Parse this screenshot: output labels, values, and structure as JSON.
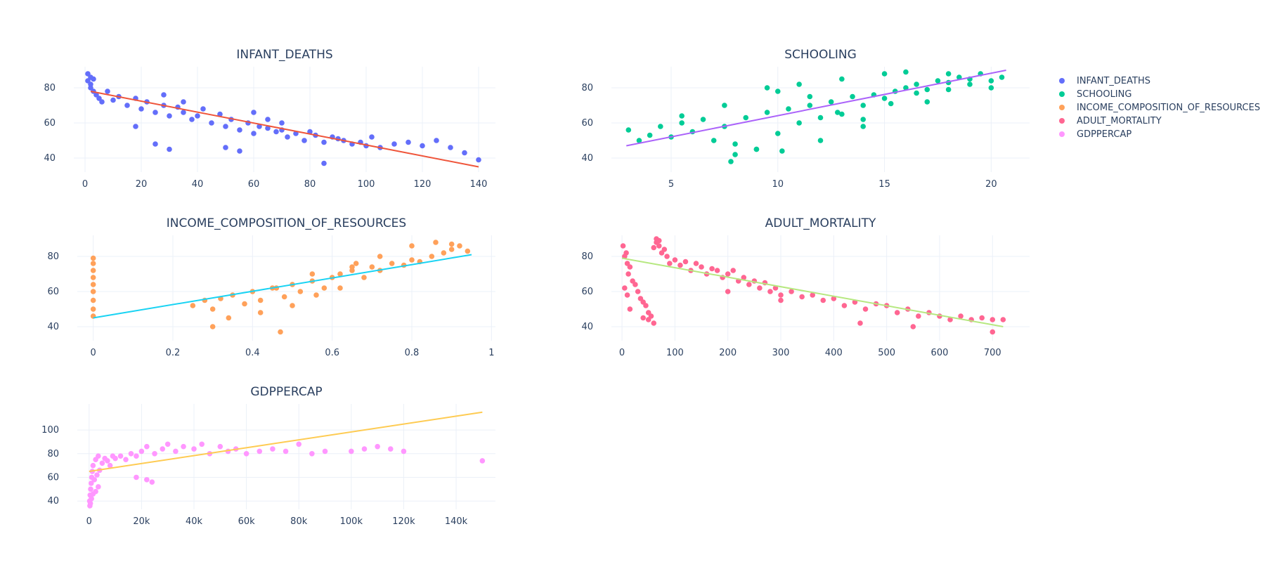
{
  "legend": {
    "placement": "top-right",
    "items": [
      {
        "label": "INFANT_DEATHS",
        "color": "#636efa"
      },
      {
        "label": "SCHOOLING",
        "color": "#00cc96"
      },
      {
        "label": "INCOME_COMPOSITION_OF_RESOURCES",
        "color": "#ffa15a"
      },
      {
        "label": "ADULT_MORTALITY",
        "color": "#ff6692"
      },
      {
        "label": "GDPPERCAP",
        "color": "#ff97ff"
      }
    ]
  },
  "chart_data": [
    {
      "type": "scatter",
      "title": "INFANT_DEATHS",
      "xlim": [
        -4,
        146
      ],
      "ylim": [
        32,
        92
      ],
      "xticks": [
        0,
        20,
        40,
        60,
        80,
        100,
        120,
        140
      ],
      "xtick_labels": [
        "0",
        "20",
        "40",
        "60",
        "80",
        "100",
        "120",
        "140"
      ],
      "yticks": [
        40,
        60,
        80
      ],
      "ytick_labels": [
        "40",
        "60",
        "80"
      ],
      "color": "#636efa",
      "trend_color": "#ef553b",
      "trend": {
        "x": [
          2,
          140
        ],
        "y": [
          78,
          35
        ]
      },
      "series": [
        {
          "name": "INFANT_DEATHS",
          "x": [
            1,
            1,
            2,
            2,
            2,
            3,
            3,
            4,
            5,
            6,
            8,
            10,
            12,
            15,
            18,
            20,
            22,
            25,
            28,
            30,
            33,
            35,
            38,
            40,
            42,
            45,
            48,
            50,
            52,
            55,
            58,
            60,
            62,
            65,
            68,
            70,
            72,
            75,
            78,
            80,
            82,
            85,
            88,
            90,
            92,
            95,
            98,
            100,
            102,
            105,
            110,
            115,
            120,
            125,
            130,
            135,
            140,
            18,
            25,
            30,
            50,
            55,
            85,
            28,
            35,
            60,
            65,
            70
          ],
          "y": [
            88,
            84,
            86,
            80,
            82,
            78,
            85,
            76,
            74,
            72,
            78,
            73,
            75,
            70,
            74,
            68,
            72,
            66,
            70,
            64,
            69,
            66,
            62,
            64,
            68,
            60,
            65,
            58,
            62,
            56,
            60,
            54,
            58,
            57,
            55,
            56,
            52,
            54,
            50,
            55,
            53,
            49,
            52,
            51,
            50,
            48,
            49,
            47,
            52,
            46,
            48,
            49,
            47,
            50,
            46,
            43,
            39,
            58,
            48,
            45,
            46,
            44,
            37,
            76,
            72,
            66,
            62,
            60
          ]
        }
      ]
    },
    {
      "type": "scatter",
      "title": "SCHOOLING",
      "xlim": [
        2.2,
        21.8
      ],
      "ylim": [
        32,
        92
      ],
      "xticks": [
        5,
        10,
        15,
        20
      ],
      "xtick_labels": [
        "5",
        "10",
        "15",
        "20"
      ],
      "yticks": [
        40,
        60,
        80
      ],
      "ytick_labels": [
        "40",
        "60",
        "80"
      ],
      "color": "#00cc96",
      "trend_color": "#ab63fa",
      "trend": {
        "x": [
          2.9,
          20.7
        ],
        "y": [
          47,
          90
        ]
      },
      "series": [
        {
          "name": "SCHOOLING",
          "x": [
            3,
            3.5,
            4,
            4.5,
            5,
            5.5,
            6,
            6.5,
            7,
            7.5,
            8,
            8.5,
            9,
            9.5,
            10,
            10.5,
            11,
            11.5,
            12,
            12.5,
            13,
            13.5,
            14,
            14.5,
            15,
            15.5,
            16,
            16.5,
            17,
            17.5,
            18,
            18.5,
            19,
            19.5,
            20,
            20.5,
            5.5,
            7.5,
            8,
            9,
            10,
            11,
            12,
            13,
            14,
            15,
            16,
            17,
            18,
            19,
            20,
            7.8,
            9.5,
            10.2,
            11.5,
            12.8,
            14,
            15.3,
            16.5,
            18
          ],
          "y": [
            56,
            50,
            53,
            58,
            52,
            60,
            55,
            62,
            50,
            58,
            48,
            63,
            45,
            66,
            54,
            68,
            60,
            70,
            63,
            72,
            65,
            75,
            70,
            76,
            74,
            78,
            80,
            82,
            79,
            84,
            83,
            86,
            85,
            88,
            84,
            86,
            64,
            70,
            42,
            45,
            78,
            82,
            50,
            85,
            58,
            88,
            89,
            72,
            88,
            82,
            80,
            38,
            80,
            44,
            75,
            66,
            62,
            71,
            77,
            79
          ]
        }
      ]
    },
    {
      "type": "scatter",
      "title": "INCOME_COMPOSITION_OF_RESOURCES",
      "xlim": [
        -0.04,
        1.01
      ],
      "ylim": [
        32,
        92
      ],
      "xticks": [
        0,
        0.2,
        0.4,
        0.6,
        0.8,
        1
      ],
      "xtick_labels": [
        "0",
        "0.2",
        "0.4",
        "0.6",
        "0.8",
        "1"
      ],
      "yticks": [
        40,
        60,
        80
      ],
      "ytick_labels": [
        "40",
        "60",
        "80"
      ],
      "color": "#ffa15a",
      "trend_color": "#19d3f3",
      "trend": {
        "x": [
          0,
          0.95
        ],
        "y": [
          45,
          81
        ]
      },
      "series": [
        {
          "name": "INCOME_COMPOSITION_OF_RESOURCES",
          "x": [
            0,
            0,
            0,
            0,
            0,
            0,
            0,
            0,
            0,
            0.25,
            0.28,
            0.3,
            0.32,
            0.35,
            0.38,
            0.4,
            0.42,
            0.45,
            0.48,
            0.5,
            0.52,
            0.55,
            0.58,
            0.6,
            0.62,
            0.65,
            0.68,
            0.7,
            0.72,
            0.75,
            0.78,
            0.8,
            0.82,
            0.85,
            0.88,
            0.9,
            0.92,
            0.94,
            0.3,
            0.34,
            0.42,
            0.47,
            0.5,
            0.56,
            0.62,
            0.66,
            0.72,
            0.8,
            0.86,
            0.9,
            0.46,
            0.55,
            0.65
          ],
          "y": [
            46,
            50,
            55,
            60,
            64,
            68,
            72,
            76,
            79,
            52,
            55,
            50,
            56,
            58,
            53,
            60,
            55,
            62,
            57,
            64,
            60,
            66,
            62,
            68,
            70,
            72,
            68,
            74,
            72,
            76,
            75,
            78,
            77,
            80,
            82,
            84,
            86,
            83,
            40,
            45,
            48,
            37,
            52,
            58,
            62,
            76,
            80,
            86,
            88,
            87,
            62,
            70,
            74
          ]
        }
      ]
    },
    {
      "type": "scatter",
      "title": "ADULT_MORTALITY",
      "xlim": [
        -20,
        770
      ],
      "ylim": [
        32,
        92
      ],
      "xticks": [
        0,
        100,
        200,
        300,
        400,
        500,
        600,
        700
      ],
      "xtick_labels": [
        "0",
        "100",
        "200",
        "300",
        "400",
        "500",
        "600",
        "700"
      ],
      "yticks": [
        40,
        60,
        80
      ],
      "ytick_labels": [
        "40",
        "60",
        "80"
      ],
      "color": "#ff6692",
      "trend_color": "#b6e880",
      "trend": {
        "x": [
          0,
          720
        ],
        "y": [
          79,
          40
        ]
      },
      "series": [
        {
          "name": "ADULT_MORTALITY",
          "x": [
            2,
            5,
            8,
            10,
            12,
            15,
            20,
            25,
            30,
            35,
            40,
            45,
            50,
            55,
            60,
            65,
            70,
            75,
            80,
            85,
            90,
            100,
            110,
            120,
            130,
            140,
            150,
            160,
            170,
            180,
            190,
            200,
            210,
            220,
            230,
            240,
            250,
            260,
            270,
            280,
            290,
            300,
            320,
            340,
            360,
            380,
            400,
            420,
            440,
            460,
            480,
            500,
            520,
            540,
            560,
            580,
            600,
            620,
            640,
            660,
            680,
            700,
            720,
            5,
            10,
            15,
            40,
            50,
            60,
            65,
            70,
            200,
            300,
            450,
            550,
            700
          ],
          "y": [
            86,
            80,
            82,
            76,
            70,
            74,
            66,
            64,
            60,
            56,
            54,
            52,
            48,
            46,
            85,
            88,
            86,
            82,
            84,
            80,
            76,
            78,
            75,
            77,
            72,
            76,
            74,
            70,
            73,
            72,
            68,
            70,
            72,
            66,
            68,
            64,
            66,
            62,
            65,
            60,
            62,
            58,
            60,
            57,
            58,
            55,
            56,
            52,
            54,
            50,
            53,
            52,
            48,
            50,
            46,
            48,
            46,
            44,
            46,
            44,
            45,
            44,
            44,
            62,
            58,
            50,
            45,
            44,
            42,
            90,
            89,
            60,
            55,
            42,
            40,
            37
          ]
        }
      ]
    },
    {
      "type": "scatter",
      "title": "GDPPERCAP",
      "xlim": [
        -4500,
        155000
      ],
      "ylim": [
        33,
        122
      ],
      "xticks": [
        0,
        20000,
        40000,
        60000,
        80000,
        100000,
        120000,
        140000
      ],
      "xtick_labels": [
        "0",
        "20k",
        "40k",
        "60k",
        "80k",
        "100k",
        "120k",
        "140k"
      ],
      "yticks": [
        40,
        60,
        80,
        100
      ],
      "ytick_labels": [
        "40",
        "60",
        "80",
        "100"
      ],
      "color": "#ff97ff",
      "trend_color": "#fecb52",
      "trend": {
        "x": [
          0,
          150000
        ],
        "y": [
          65,
          115
        ]
      },
      "series": [
        {
          "name": "GDPPERCAP",
          "x": [
            200,
            400,
            600,
            800,
            1000,
            1200,
            1500,
            2000,
            2500,
            3000,
            3500,
            4000,
            5000,
            6000,
            7000,
            8000,
            9000,
            10000,
            12000,
            14000,
            16000,
            18000,
            20000,
            22000,
            25000,
            28000,
            30000,
            33000,
            36000,
            40000,
            43000,
            46000,
            50000,
            53000,
            56000,
            60000,
            65000,
            70000,
            75000,
            80000,
            85000,
            90000,
            100000,
            105000,
            110000,
            115000,
            120000,
            150000,
            300,
            500,
            900,
            1500,
            2500,
            3500,
            18000,
            22000,
            24000
          ],
          "y": [
            40,
            45,
            50,
            55,
            60,
            65,
            70,
            58,
            75,
            62,
            78,
            66,
            72,
            76,
            74,
            70,
            78,
            76,
            78,
            75,
            80,
            78,
            82,
            86,
            80,
            84,
            88,
            82,
            86,
            84,
            88,
            80,
            86,
            82,
            84,
            80,
            82,
            84,
            82,
            88,
            80,
            82,
            82,
            84,
            86,
            84,
            82,
            74,
            36,
            38,
            42,
            46,
            48,
            52,
            60,
            58,
            56
          ]
        }
      ]
    }
  ]
}
